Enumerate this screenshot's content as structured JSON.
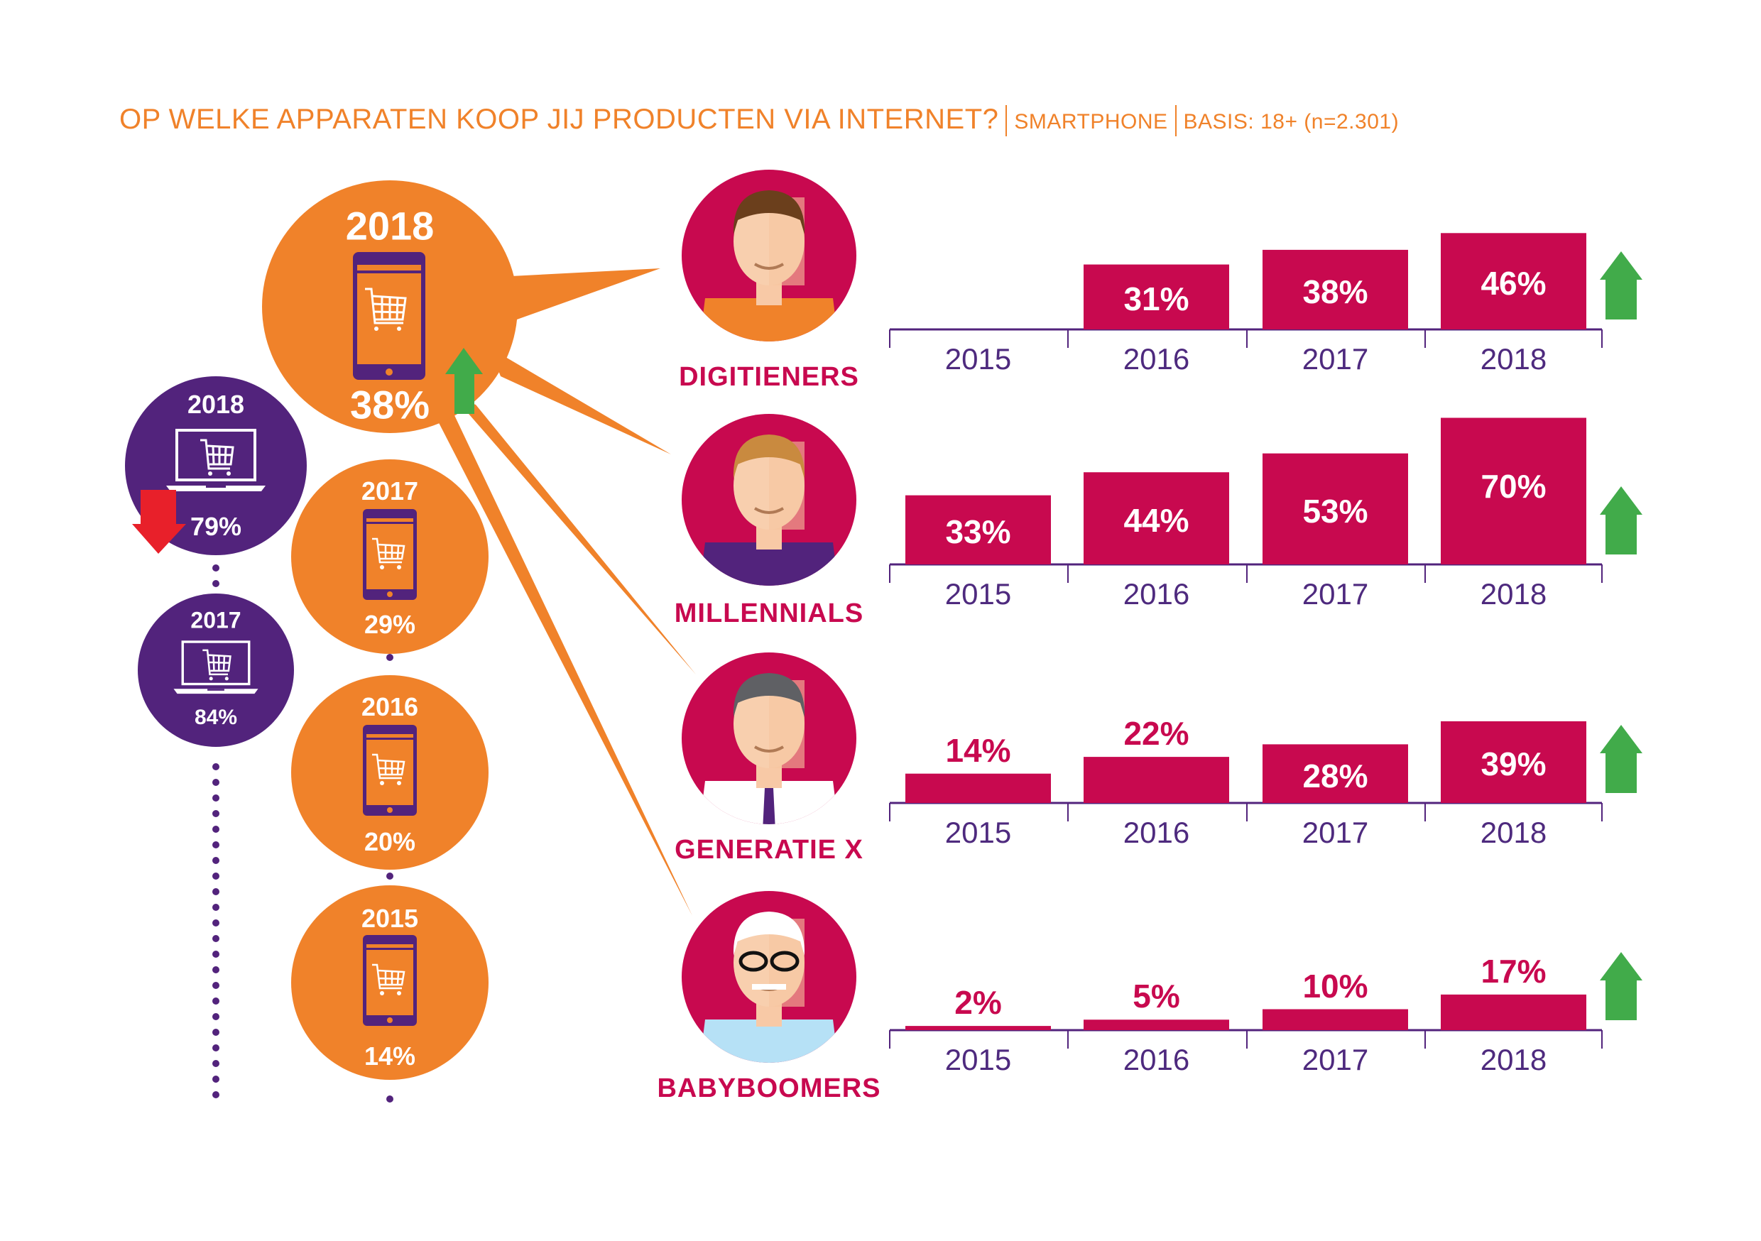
{
  "header": {
    "question": "OP WELKE APPARATEN KOOP JIJ PRODUCTEN VIA INTERNET?",
    "device": "SMARTPHONE",
    "basis": "BASIS: 18+ (n=2.301)"
  },
  "colors": {
    "orange": "#f0822a",
    "purple": "#52237c",
    "magenta": "#c8094f",
    "green": "#41ab4a",
    "red": "#e8202a"
  },
  "smartphone_timeline": [
    {
      "year": "2018",
      "value": "38%",
      "trend": "up"
    },
    {
      "year": "2017",
      "value": "29%"
    },
    {
      "year": "2016",
      "value": "20%"
    },
    {
      "year": "2015",
      "value": "14%"
    }
  ],
  "laptop_timeline": [
    {
      "year": "2018",
      "value": "79%",
      "trend": "down"
    },
    {
      "year": "2017",
      "value": "84%"
    }
  ],
  "chart_data": {
    "type": "bar",
    "title": "OP WELKE APPARATEN KOOP JIJ PRODUCTEN VIA INTERNET? | SMARTPHONE",
    "categories": [
      "2015",
      "2016",
      "2017",
      "2018"
    ],
    "ylim": [
      0,
      100
    ],
    "series": [
      {
        "name": "DIGITIENERS",
        "values": [
          null,
          31,
          38,
          46
        ],
        "labels": [
          "",
          "31%",
          "38%",
          "46%"
        ],
        "trend": "up"
      },
      {
        "name": "MILLENNIALS",
        "values": [
          33,
          44,
          53,
          70
        ],
        "labels": [
          "33%",
          "44%",
          "53%",
          "70%"
        ],
        "trend": "up"
      },
      {
        "name": "GENERATIE X",
        "values": [
          14,
          22,
          28,
          39
        ],
        "labels": [
          "14%",
          "22%",
          "28%",
          "39%"
        ],
        "trend": "up"
      },
      {
        "name": "BABYBOOMERS",
        "values": [
          2,
          5,
          10,
          17
        ],
        "labels": [
          "2%",
          "5%",
          "10%",
          "17%"
        ],
        "trend": "up"
      }
    ]
  }
}
